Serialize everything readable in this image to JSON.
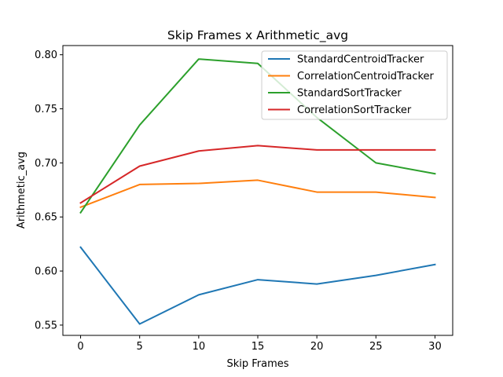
{
  "chart_data": {
    "type": "line",
    "title": "Skip Frames x Arithmetic_avg",
    "xlabel": "Skip Frames",
    "ylabel": "Arithmetic_avg",
    "x": [
      0,
      5,
      10,
      15,
      20,
      25,
      30
    ],
    "xticks": [
      "0",
      "5",
      "10",
      "15",
      "20",
      "25",
      "30"
    ],
    "yticks": [
      "0.55",
      "0.60",
      "0.65",
      "0.70",
      "0.75",
      "0.80"
    ],
    "xlim": [
      -1.5,
      31.5
    ],
    "ylim": [
      0.5405,
      0.8085
    ],
    "grid": false,
    "legend_position": "top-right",
    "series": [
      {
        "name": "StandardCentroidTracker",
        "color": "#1f77b4",
        "values": [
          0.622,
          0.551,
          0.578,
          0.592,
          0.588,
          0.596,
          0.606
        ]
      },
      {
        "name": "CorrelationCentroidTracker",
        "color": "#ff7f0e",
        "values": [
          0.659,
          0.68,
          0.681,
          0.684,
          0.673,
          0.673,
          0.668
        ]
      },
      {
        "name": "StandardSortTracker",
        "color": "#2ca02c",
        "values": [
          0.654,
          0.735,
          0.796,
          0.792,
          0.742,
          0.7,
          0.69
        ]
      },
      {
        "name": "CorrelationSortTracker",
        "color": "#d62728",
        "values": [
          0.663,
          0.697,
          0.711,
          0.716,
          0.712,
          0.712,
          0.712
        ]
      }
    ]
  }
}
